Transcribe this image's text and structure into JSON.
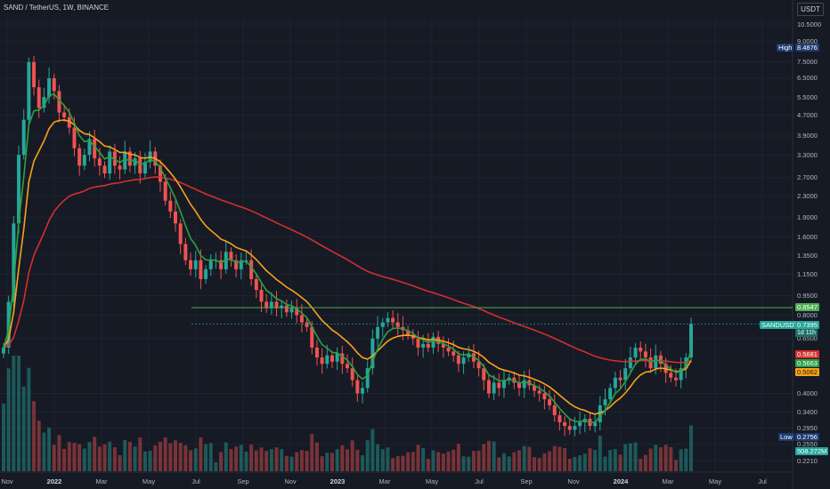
{
  "header": {
    "title": "SAND / TetherUS, 1W, BINANCE",
    "currency": "USDT"
  },
  "chart_data": {
    "type": "candlestick",
    "y_scale": "log",
    "ylim": [
      0.2,
      12
    ],
    "y_ticks": [
      "10.5000",
      "9.0000",
      "7.5000",
      "6.5000",
      "5.5000",
      "4.7000",
      "3.9000",
      "3.3000",
      "2.7000",
      "2.3000",
      "1.9000",
      "1.6000",
      "1.3500",
      "1.1500",
      "0.9500",
      "0.8000",
      "0.6500",
      "0.4000",
      "0.3400",
      "0.2950",
      "0.2550",
      "0.2210"
    ],
    "x_ticks": [
      {
        "label": "Nov",
        "bold": false
      },
      {
        "label": "2022",
        "bold": true
      },
      {
        "label": "Mar",
        "bold": false
      },
      {
        "label": "May",
        "bold": false
      },
      {
        "label": "Jul",
        "bold": false
      },
      {
        "label": "Sep",
        "bold": false
      },
      {
        "label": "Nov",
        "bold": false
      },
      {
        "label": "2023",
        "bold": true
      },
      {
        "label": "Mar",
        "bold": false
      },
      {
        "label": "May",
        "bold": false
      },
      {
        "label": "Jul",
        "bold": false
      },
      {
        "label": "Sep",
        "bold": false
      },
      {
        "label": "Nov",
        "bold": false
      },
      {
        "label": "2024",
        "bold": true
      },
      {
        "label": "Mar",
        "bold": false
      },
      {
        "label": "May",
        "bold": false
      },
      {
        "label": "Jul",
        "bold": false
      }
    ],
    "price_path": [
      0.6,
      0.9,
      1.8,
      3.3,
      4.5,
      7.5,
      6.0,
      5.0,
      5.5,
      6.5,
      5.8,
      4.8,
      4.6,
      4.2,
      3.5,
      3.0,
      3.3,
      3.8,
      3.2,
      3.0,
      2.8,
      3.4,
      3.0,
      2.9,
      3.4,
      3.0,
      3.2,
      2.8,
      3.1,
      3.4,
      3.0,
      2.6,
      2.2,
      2.0,
      1.8,
      1.5,
      1.3,
      1.2,
      1.3,
      1.1,
      1.2,
      1.3,
      1.3,
      1.2,
      1.4,
      1.3,
      1.2,
      1.3,
      1.3,
      1.1,
      1.0,
      0.9,
      0.85,
      0.9,
      0.85,
      0.87,
      0.82,
      0.85,
      0.8,
      0.75,
      0.72,
      0.6,
      0.55,
      0.52,
      0.56,
      0.53,
      0.57,
      0.52,
      0.5,
      0.45,
      0.4,
      0.42,
      0.5,
      0.65,
      0.72,
      0.75,
      0.78,
      0.75,
      0.72,
      0.7,
      0.67,
      0.65,
      0.6,
      0.62,
      0.6,
      0.66,
      0.62,
      0.6,
      0.58,
      0.56,
      0.52,
      0.55,
      0.57,
      0.53,
      0.5,
      0.45,
      0.4,
      0.44,
      0.42,
      0.45,
      0.46,
      0.44,
      0.42,
      0.45,
      0.43,
      0.41,
      0.4,
      0.38,
      0.36,
      0.33,
      0.31,
      0.3,
      0.29,
      0.3,
      0.31,
      0.32,
      0.3,
      0.31,
      0.36,
      0.38,
      0.42,
      0.46,
      0.45,
      0.5,
      0.55,
      0.6,
      0.58,
      0.55,
      0.5,
      0.56,
      0.52,
      0.48,
      0.46,
      0.45,
      0.5,
      0.55,
      0.74
    ],
    "ema_fast_color": "#2ea043",
    "ema_mid_color": "#f7a21b",
    "ema_slow_color": "#d32f2f",
    "horizontal_level": {
      "value": 0.8547,
      "label": "0.8547",
      "color": "#4caf50"
    },
    "price_tags": [
      {
        "label": "SANDUSDT",
        "value": "0.7395",
        "sub": "1d 11h",
        "color": "#26a69a"
      },
      {
        "label": "High",
        "value": "8.4876",
        "color": "#1e3a6e"
      },
      {
        "label": "Low",
        "value": "0.2756",
        "color": "#1e3a6e"
      },
      {
        "label": "EMA",
        "value": "0.5681",
        "color": "#d32f2f"
      },
      {
        "label": "EMA",
        "value": "0.5663",
        "color": "#2ea043"
      },
      {
        "label": "EMA",
        "value": "0.5062",
        "color": "#f7a21b"
      },
      {
        "label": "Volume",
        "value": "508.272M",
        "color": "#26a69a"
      }
    ],
    "up_color": "#26a69a",
    "down_color": "#ef5350"
  }
}
